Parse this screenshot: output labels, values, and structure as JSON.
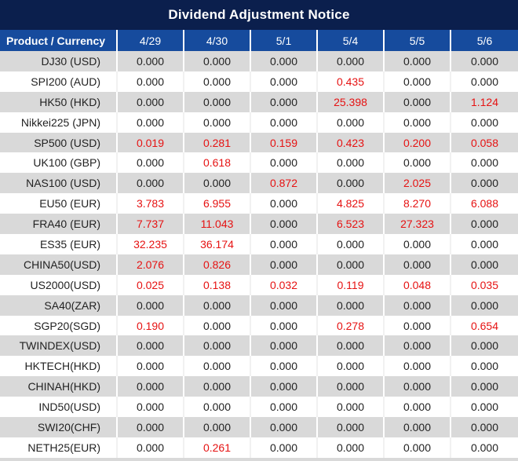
{
  "title": "Dividend Adjustment Notice",
  "table": {
    "product_header": "Product / Currency",
    "date_headers": [
      "4/29",
      "4/30",
      "5/1",
      "5/4",
      "5/5",
      "5/6"
    ],
    "rows": [
      {
        "product": "DJ30 (USD)",
        "values": [
          "0.000",
          "0.000",
          "0.000",
          "0.000",
          "0.000",
          "0.000"
        ],
        "red": [
          false,
          false,
          false,
          false,
          false,
          false
        ]
      },
      {
        "product": "SPI200 (AUD)",
        "values": [
          "0.000",
          "0.000",
          "0.000",
          "0.435",
          "0.000",
          "0.000"
        ],
        "red": [
          false,
          false,
          false,
          true,
          false,
          false
        ]
      },
      {
        "product": "HK50 (HKD)",
        "values": [
          "0.000",
          "0.000",
          "0.000",
          "25.398",
          "0.000",
          "1.124"
        ],
        "red": [
          false,
          false,
          false,
          true,
          false,
          true
        ]
      },
      {
        "product": "Nikkei225 (JPN)",
        "values": [
          "0.000",
          "0.000",
          "0.000",
          "0.000",
          "0.000",
          "0.000"
        ],
        "red": [
          false,
          false,
          false,
          false,
          false,
          false
        ]
      },
      {
        "product": "SP500 (USD)",
        "values": [
          "0.019",
          "0.281",
          "0.159",
          "0.423",
          "0.200",
          "0.058"
        ],
        "red": [
          true,
          true,
          true,
          true,
          true,
          true
        ]
      },
      {
        "product": "UK100 (GBP)",
        "values": [
          "0.000",
          "0.618",
          "0.000",
          "0.000",
          "0.000",
          "0.000"
        ],
        "red": [
          false,
          true,
          false,
          false,
          false,
          false
        ]
      },
      {
        "product": "NAS100 (USD)",
        "values": [
          "0.000",
          "0.000",
          "0.872",
          "0.000",
          "2.025",
          "0.000"
        ],
        "red": [
          false,
          false,
          true,
          false,
          true,
          false
        ]
      },
      {
        "product": "EU50 (EUR)",
        "values": [
          "3.783",
          "6.955",
          "0.000",
          "4.825",
          "8.270",
          "6.088"
        ],
        "red": [
          true,
          true,
          false,
          true,
          true,
          true
        ]
      },
      {
        "product": "FRA40 (EUR)",
        "values": [
          "7.737",
          "11.043",
          "0.000",
          "6.523",
          "27.323",
          "0.000"
        ],
        "red": [
          true,
          true,
          false,
          true,
          true,
          false
        ]
      },
      {
        "product": "ES35 (EUR)",
        "values": [
          "32.235",
          "36.174",
          "0.000",
          "0.000",
          "0.000",
          "0.000"
        ],
        "red": [
          true,
          true,
          false,
          false,
          false,
          false
        ]
      },
      {
        "product": "CHINA50(USD)",
        "values": [
          "2.076",
          "0.826",
          "0.000",
          "0.000",
          "0.000",
          "0.000"
        ],
        "red": [
          true,
          true,
          false,
          false,
          false,
          false
        ]
      },
      {
        "product": "US2000(USD)",
        "values": [
          "0.025",
          "0.138",
          "0.032",
          "0.119",
          "0.048",
          "0.035"
        ],
        "red": [
          true,
          true,
          true,
          true,
          true,
          true
        ]
      },
      {
        "product": "SA40(ZAR)",
        "values": [
          "0.000",
          "0.000",
          "0.000",
          "0.000",
          "0.000",
          "0.000"
        ],
        "red": [
          false,
          false,
          false,
          false,
          false,
          false
        ]
      },
      {
        "product": "SGP20(SGD)",
        "values": [
          "0.190",
          "0.000",
          "0.000",
          "0.278",
          "0.000",
          "0.654"
        ],
        "red": [
          true,
          false,
          false,
          true,
          false,
          true
        ]
      },
      {
        "product": "TWINDEX(USD)",
        "values": [
          "0.000",
          "0.000",
          "0.000",
          "0.000",
          "0.000",
          "0.000"
        ],
        "red": [
          false,
          false,
          false,
          false,
          false,
          false
        ]
      },
      {
        "product": "HKTECH(HKD)",
        "values": [
          "0.000",
          "0.000",
          "0.000",
          "0.000",
          "0.000",
          "0.000"
        ],
        "red": [
          false,
          false,
          false,
          false,
          false,
          false
        ]
      },
      {
        "product": "CHINAH(HKD)",
        "values": [
          "0.000",
          "0.000",
          "0.000",
          "0.000",
          "0.000",
          "0.000"
        ],
        "red": [
          false,
          false,
          false,
          false,
          false,
          false
        ]
      },
      {
        "product": "IND50(USD)",
        "values": [
          "0.000",
          "0.000",
          "0.000",
          "0.000",
          "0.000",
          "0.000"
        ],
        "red": [
          false,
          false,
          false,
          false,
          false,
          false
        ]
      },
      {
        "product": "SWI20(CHF)",
        "values": [
          "0.000",
          "0.000",
          "0.000",
          "0.000",
          "0.000",
          "0.000"
        ],
        "red": [
          false,
          false,
          false,
          false,
          false,
          false
        ]
      },
      {
        "product": "NETH25(EUR)",
        "values": [
          "0.000",
          "0.261",
          "0.000",
          "0.000",
          "0.000",
          "0.000"
        ],
        "red": [
          false,
          true,
          false,
          false,
          false,
          false
        ]
      }
    ]
  },
  "colors": {
    "title_bg": "#0b1f4d",
    "header_bg": "#164b9d",
    "alt_row_bg": "#d9d9d9",
    "red_value": "#e61212",
    "value_text": "#222222",
    "header_text": "#ffffff"
  }
}
